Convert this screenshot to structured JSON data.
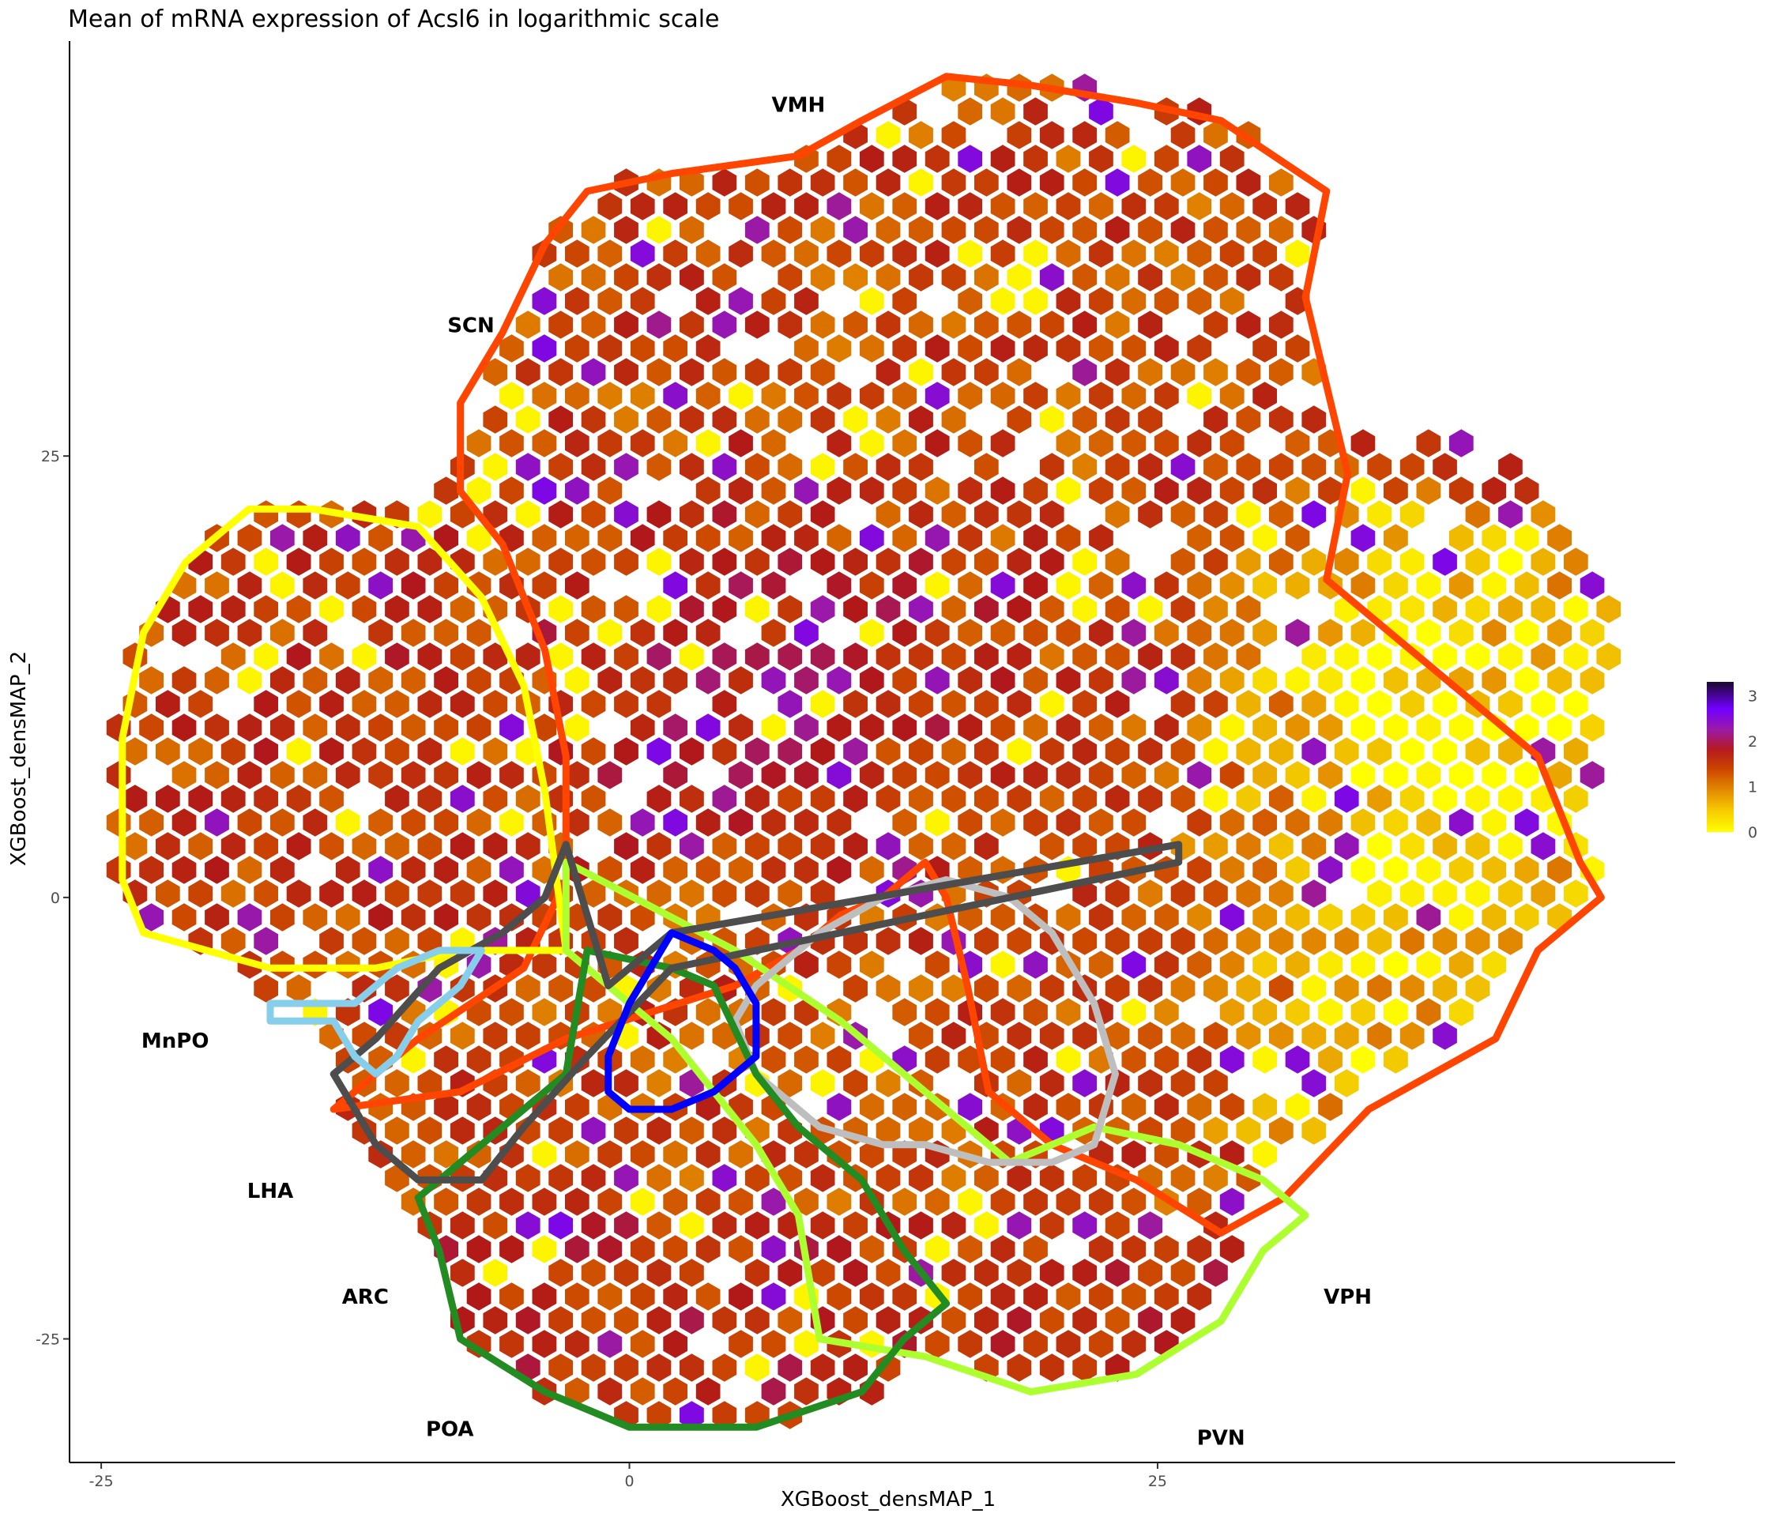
{
  "chart_data": {
    "type": "heatmap",
    "subtype": "hexbin",
    "title": "Mean of mRNA expression of Acsl6 in logarithmic scale",
    "xlabel": "XGBoost_densMAP_1",
    "ylabel": "XGBoost_densMAP_2",
    "xlim": [
      -26.5,
      49.5
    ],
    "ylim": [
      -32,
      48.5
    ],
    "x_ticks": [
      -25,
      0,
      25
    ],
    "x_tick_labels": [
      "-25",
      "0",
      "25"
    ],
    "y_ticks": [
      -25,
      0,
      25
    ],
    "y_tick_labels": [
      "-25",
      "0",
      "25"
    ],
    "grid": false,
    "color_scale": {
      "min": 0,
      "max": 3.3,
      "ticks": [
        0,
        1,
        2,
        3
      ],
      "tick_labels": [
        "0",
        "1",
        "2",
        "3"
      ],
      "colors": [
        "#ffff00",
        "#e79600",
        "#cd4a00",
        "#b11818",
        "#9b1aa6",
        "#7200ff",
        "#1a0a2e"
      ]
    },
    "legend_placement": "right",
    "regions": [
      {
        "label": "VMH",
        "color": "#ff4500",
        "outline": [
          [
            -4,
            37
          ],
          [
            -2,
            40
          ],
          [
            2,
            41
          ],
          [
            8,
            42
          ],
          [
            11,
            44
          ],
          [
            15,
            46.5
          ],
          [
            19,
            46
          ],
          [
            24,
            45
          ],
          [
            28,
            44
          ],
          [
            33,
            40
          ],
          [
            32,
            34
          ],
          [
            33,
            29
          ],
          [
            34,
            24
          ],
          [
            33,
            18
          ],
          [
            43,
            8
          ],
          [
            45,
            2
          ],
          [
            46,
            0
          ],
          [
            43,
            -3
          ],
          [
            41,
            -8
          ],
          [
            35,
            -12
          ],
          [
            31,
            -17
          ],
          [
            28,
            -19
          ],
          [
            24,
            -16
          ],
          [
            20,
            -14
          ],
          [
            17,
            -11
          ],
          [
            16,
            -5
          ],
          [
            15,
            0
          ],
          [
            14,
            2
          ],
          [
            12,
            0
          ],
          [
            10,
            -1
          ],
          [
            8,
            -3
          ],
          [
            5,
            -5
          ],
          [
            -3,
            -8
          ],
          [
            -8,
            -11
          ],
          [
            -14,
            -12
          ],
          [
            -10,
            -8
          ],
          [
            -5,
            -4
          ],
          [
            -3,
            1
          ],
          [
            -3,
            8
          ],
          [
            -4,
            14
          ],
          [
            -6,
            20
          ],
          [
            -8,
            23
          ],
          [
            -8,
            28
          ],
          [
            -6,
            32
          ],
          [
            -4,
            37
          ]
        ],
        "label_pos": [
          8,
          44.5
        ]
      },
      {
        "label": "SCN",
        "color": "#ffff00",
        "outline": [
          [
            -24,
            1
          ],
          [
            -24,
            9
          ],
          [
            -23,
            15
          ],
          [
            -21,
            19
          ],
          [
            -18,
            22
          ],
          [
            -15,
            22
          ],
          [
            -10,
            21
          ],
          [
            -7,
            17
          ],
          [
            -5,
            12
          ],
          [
            -4,
            6
          ],
          [
            -3,
            -3
          ],
          [
            -8,
            -3
          ],
          [
            -12,
            -4
          ],
          [
            -14,
            -4
          ],
          [
            -17,
            -4
          ],
          [
            -20,
            -3
          ],
          [
            -23,
            -2
          ],
          [
            -24,
            1
          ]
        ],
        "label_pos": [
          -7.5,
          32
        ]
      },
      {
        "label": "PVN",
        "color": "#adff2f",
        "outline": [
          [
            -3,
            2
          ],
          [
            5,
            -3
          ],
          [
            10,
            -7
          ],
          [
            14,
            -11
          ],
          [
            18,
            -15
          ],
          [
            22,
            -13
          ],
          [
            26,
            -14
          ],
          [
            30,
            -16
          ],
          [
            32,
            -18
          ],
          [
            30,
            -20
          ],
          [
            28,
            -24
          ],
          [
            24,
            -27
          ],
          [
            19,
            -28
          ],
          [
            14,
            -26
          ],
          [
            9,
            -25
          ],
          [
            8,
            -18
          ],
          [
            6,
            -14
          ],
          [
            2,
            -8
          ],
          [
            -3,
            -3
          ],
          [
            -3,
            2
          ]
        ],
        "label_pos": [
          28,
          -31
        ]
      },
      {
        "label": "VPH",
        "color": "#bebebe",
        "outline": [
          [
            6,
            -5
          ],
          [
            9,
            -2
          ],
          [
            12,
            0
          ],
          [
            15,
            1
          ],
          [
            18,
            0
          ],
          [
            20,
            -2
          ],
          [
            22,
            -6
          ],
          [
            23,
            -10
          ],
          [
            22,
            -14
          ],
          [
            20,
            -15
          ],
          [
            17,
            -15
          ],
          [
            14,
            -14
          ],
          [
            12,
            -14
          ],
          [
            9,
            -13
          ],
          [
            6,
            -10
          ],
          [
            5,
            -7
          ],
          [
            6,
            -5
          ]
        ],
        "label_pos": [
          34,
          -23
        ]
      },
      {
        "label": "ARC",
        "color": "#228b22",
        "outline": [
          [
            -2,
            -3
          ],
          [
            2,
            -4
          ],
          [
            4,
            -5
          ],
          [
            6,
            -10
          ],
          [
            8,
            -13
          ],
          [
            11,
            -16
          ],
          [
            13,
            -20
          ],
          [
            15,
            -23
          ],
          [
            13,
            -25
          ],
          [
            11,
            -28
          ],
          [
            6,
            -30
          ],
          [
            0,
            -30
          ],
          [
            -4,
            -28
          ],
          [
            -8,
            -25
          ],
          [
            -9,
            -20
          ],
          [
            -10,
            -17
          ],
          [
            -6,
            -13
          ],
          [
            -3,
            -10
          ],
          [
            -2,
            -3
          ]
        ],
        "label_pos": [
          -12.5,
          -23
        ]
      },
      {
        "label": "LHA",
        "color": "#4d4d4d",
        "outline": [
          [
            -3,
            3
          ],
          [
            -4,
            0
          ],
          [
            -6,
            -2
          ],
          [
            -9,
            -4
          ],
          [
            -12,
            -8
          ],
          [
            -14,
            -10
          ],
          [
            -12,
            -14
          ],
          [
            -10,
            -16
          ],
          [
            -7,
            -16
          ],
          [
            -5,
            -13
          ],
          [
            -2,
            -9
          ],
          [
            2,
            -4
          ],
          [
            26,
            2
          ],
          [
            26,
            3
          ],
          [
            2,
            -2
          ],
          [
            -1,
            -5
          ],
          [
            -3,
            3
          ]
        ],
        "label_pos": [
          -17,
          -17
        ]
      },
      {
        "label": "MnPO",
        "color": "#87ceeb",
        "outline": [
          [
            -17,
            -6
          ],
          [
            -13,
            -6
          ],
          [
            -11,
            -4
          ],
          [
            -9,
            -3
          ],
          [
            -7,
            -3
          ],
          [
            -8,
            -5
          ],
          [
            -10,
            -7
          ],
          [
            -11,
            -9
          ],
          [
            -12,
            -10
          ],
          [
            -13,
            -9
          ],
          [
            -14,
            -7
          ],
          [
            -17,
            -7
          ],
          [
            -17,
            -6
          ]
        ],
        "label_pos": [
          -21.5,
          -8.5
        ]
      },
      {
        "label": "POA",
        "color": "#0000ff",
        "outline": [
          [
            2,
            -2
          ],
          [
            4,
            -3
          ],
          [
            5,
            -4
          ],
          [
            6,
            -6
          ],
          [
            6,
            -9
          ],
          [
            4,
            -11
          ],
          [
            2,
            -12
          ],
          [
            0,
            -12
          ],
          [
            -1,
            -11
          ],
          [
            -1,
            -9
          ],
          [
            0,
            -6
          ],
          [
            1,
            -4
          ],
          [
            2,
            -2
          ]
        ],
        "label_pos": [
          -8.5,
          -30.5
        ]
      }
    ],
    "hex_field": {
      "description": "hexagonal bins colored by mean log expression (0–3.3)",
      "seed": 13,
      "bin_size_data_units": 1.55
    }
  }
}
